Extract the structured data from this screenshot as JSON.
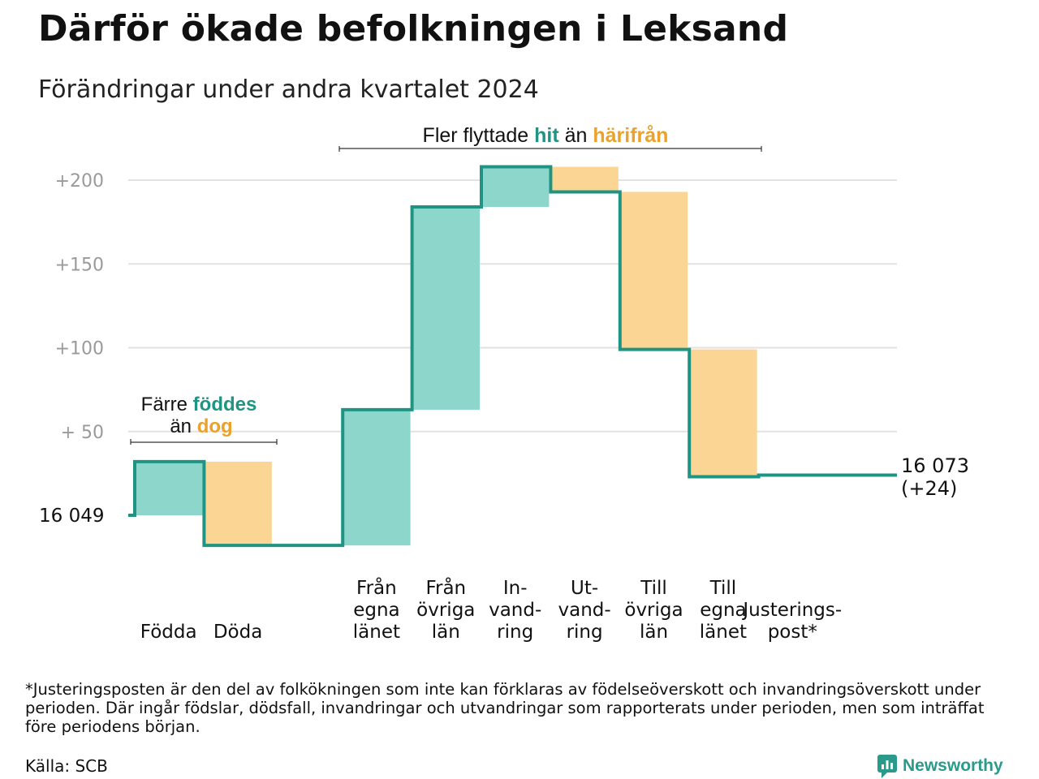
{
  "title": "Därför ökade befolkningen i Leksand",
  "subtitle": "Förändringar under andra kvartalet 2024",
  "chart_data": {
    "type": "waterfall",
    "start_label": "16  049",
    "end_label_lines": [
      "16 073",
      "(+24)"
    ],
    "y_tick_labels": [
      "+  50",
      "+100",
      "+150",
      "+200"
    ],
    "y_ticks": [
      50,
      100,
      150,
      200
    ],
    "ylim": [
      -25,
      210
    ],
    "grid": true,
    "steps": [
      {
        "label_lines": [
          "Födda"
        ],
        "delta": 32,
        "kind": "in"
      },
      {
        "label_lines": [
          "Döda"
        ],
        "delta": -50,
        "kind": "out"
      },
      {
        "label_lines": [],
        "delta": 0,
        "kind": "gap"
      },
      {
        "label_lines": [
          "Från",
          "egna",
          "länet"
        ],
        "delta": 81,
        "kind": "in"
      },
      {
        "label_lines": [
          "Från",
          "övriga",
          "län"
        ],
        "delta": 121,
        "kind": "in"
      },
      {
        "label_lines": [
          "In-",
          "vand-",
          "ring"
        ],
        "delta": 24,
        "kind": "in"
      },
      {
        "label_lines": [
          "Ut-",
          "vand-",
          "ring"
        ],
        "delta": -15,
        "kind": "out"
      },
      {
        "label_lines": [
          "Till",
          "övriga",
          "län"
        ],
        "delta": -94,
        "kind": "out"
      },
      {
        "label_lines": [
          "Till",
          "egna",
          "länet"
        ],
        "delta": -76,
        "kind": "out"
      },
      {
        "label_lines": [
          "Justerings-",
          "post*"
        ],
        "delta": 1,
        "kind": "adjust"
      }
    ],
    "annotations": {
      "births": {
        "line1_prefix": "Färre ",
        "line1_highlight": "föddes",
        "line2_prefix": "än ",
        "line2_highlight": "dog"
      },
      "migration": {
        "prefix": "Fler flyttade ",
        "highlight1": "hit",
        "middle": "  än ",
        "highlight2": "härifrån"
      }
    },
    "colors": {
      "in": "#8dd6cc",
      "out": "#fbd593",
      "line": "#1f9483",
      "grid": "#e2e2e2",
      "tick_text": "#9a9a9a",
      "teal_text": "#1f9483",
      "orange_text": "#eaa22a"
    }
  },
  "footnote": "*Justeringsposten är den del av folkökningen som inte kan förklaras av födelseöverskott och invandringsöverskott under perioden. Där ingår födslar, dödsfall, invandringar och utvandringar som rapporterats under perioden, men som inträffat före periodens början.",
  "source": "Källa: SCB",
  "logo": {
    "text": "Newsworthy",
    "icon": "newsworthy-logo-icon"
  }
}
